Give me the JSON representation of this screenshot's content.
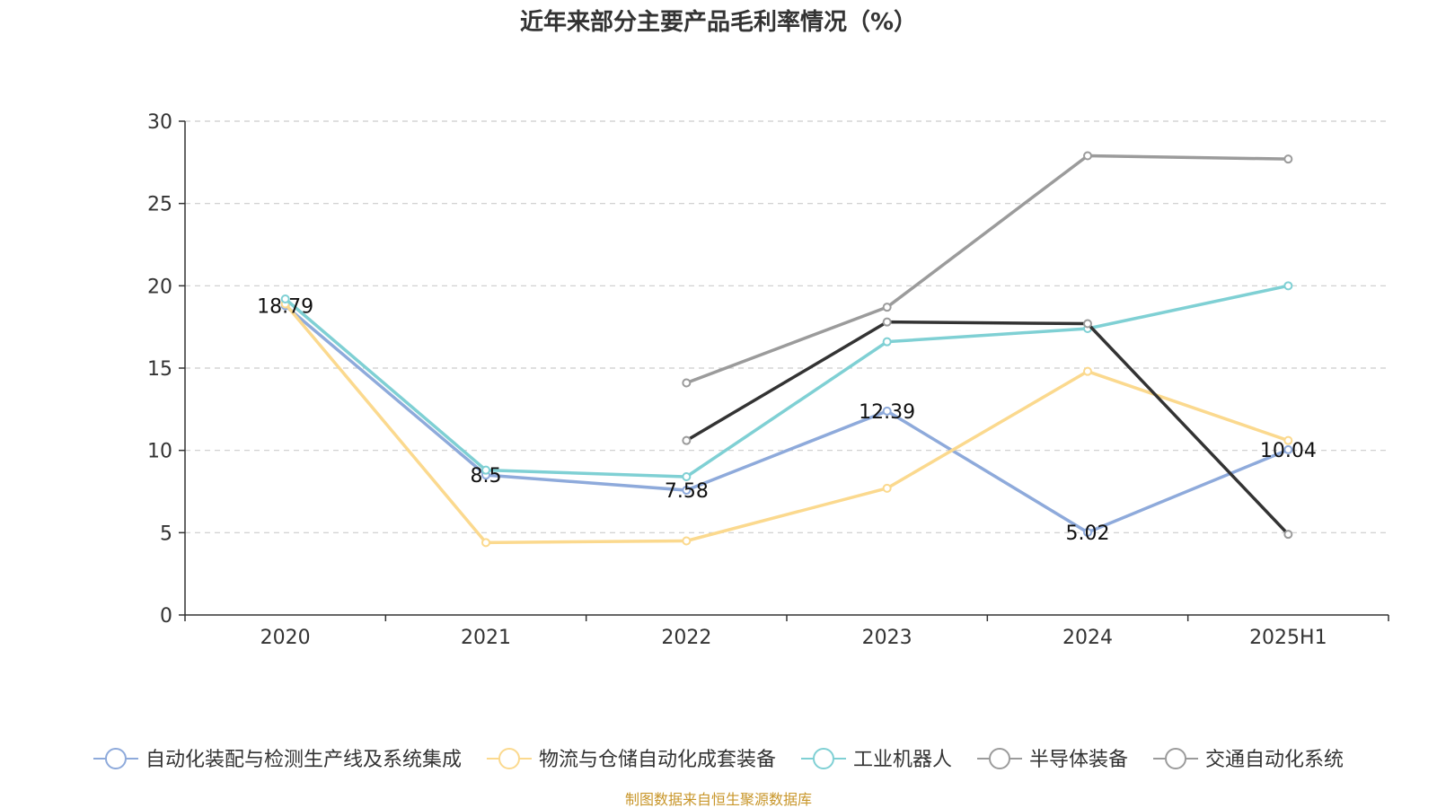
{
  "chart_data": {
    "type": "line",
    "title": "近年来部分主要产品毛利率情况（%）",
    "categories": [
      "2020",
      "2021",
      "2022",
      "2023",
      "2024",
      "2025H1"
    ],
    "yticks": [
      "0",
      "5",
      "10",
      "15",
      "20",
      "25",
      "30"
    ],
    "ylim": [
      0,
      30
    ],
    "grid": true,
    "legend_position": "bottom",
    "series": [
      {
        "name": "自动化装配与检测生产线及系统集成",
        "color": "#8eaadb",
        "values": [
          18.79,
          8.5,
          7.58,
          12.39,
          5.02,
          10.04
        ],
        "labels": [
          "18.79",
          "8.5",
          "7.58",
          "12.39",
          "5.02",
          "10.04"
        ]
      },
      {
        "name": "物流与仓储自动化成套装备",
        "color": "#fbd98e",
        "values": [
          18.9,
          4.4,
          4.5,
          7.7,
          14.8,
          10.6
        ]
      },
      {
        "name": "工业机器人",
        "color": "#7fd0d4",
        "values": [
          19.2,
          8.8,
          8.4,
          16.6,
          17.4,
          20.0
        ]
      },
      {
        "name": "半导体装备",
        "color": "#9b9b9b",
        "values": [
          null,
          null,
          14.1,
          18.7,
          27.9,
          27.7
        ]
      },
      {
        "name": "交通自动化系统",
        "color": "#333333",
        "legend_color": "#9b9b9b",
        "values": [
          null,
          null,
          10.6,
          17.8,
          17.7,
          4.9
        ]
      }
    ],
    "source": "制图数据来自恒生聚源数据库",
    "source_color": "#c8962a"
  }
}
